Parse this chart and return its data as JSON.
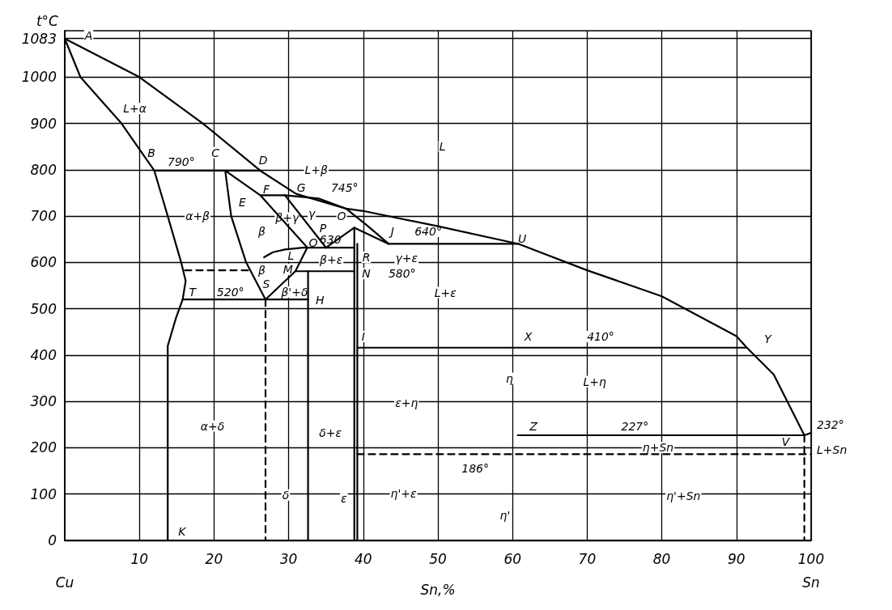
{
  "chart_data": {
    "type": "line",
    "ylabel": "t°C",
    "xlabel": "Sn,%",
    "xlim": [
      0,
      100
    ],
    "ylim": [
      0,
      1100
    ],
    "xticks": [
      10,
      20,
      30,
      40,
      50,
      60,
      70,
      80,
      90,
      100
    ],
    "yticks": [
      0,
      100,
      200,
      300,
      400,
      500,
      600,
      700,
      800,
      900,
      1000,
      1083
    ],
    "grid": true,
    "marker": "none",
    "line_style": "solid",
    "series": [
      {
        "color": "#000000",
        "x": [
          0,
          10,
          18.5,
          26.2,
          31,
          37.7,
          40,
          50,
          60.8,
          70,
          80,
          90,
          91.4,
          95,
          99.1,
          100
        ],
        "values": [
          1083,
          1000,
          900,
          798,
          748,
          716,
          711,
          678,
          640,
          583,
          527,
          441,
          416,
          358,
          227,
          232
        ]
      },
      {
        "color": "#000000",
        "x": [
          0,
          2.1,
          7.6,
          12,
          13.8,
          15.6,
          16.2,
          15.8,
          14.9,
          13.8,
          13.8
        ],
        "values": [
          1083,
          1000,
          900,
          798,
          700,
          600,
          560,
          520,
          480,
          420,
          0
        ]
      },
      {
        "color": "#000000",
        "x": [
          12,
          26.2
        ],
        "values": [
          798,
          798
        ]
      },
      {
        "color": "#000000",
        "x": [
          21.5,
          22.3,
          24.3,
          26.9
        ],
        "values": [
          798,
          700,
          600,
          520
        ]
      },
      {
        "color": "#000000",
        "x": [
          21.5,
          26.2,
          32.5
        ],
        "values": [
          798,
          745,
          632
        ]
      },
      {
        "color": "#000000",
        "x": [
          26.2,
          29.5,
          34,
          37.7,
          40.5,
          43.4
        ],
        "values": [
          745,
          745,
          738,
          716,
          680,
          640
        ]
      },
      {
        "color": "#000000",
        "x": [
          29.5,
          35,
          38.8,
          43.4,
          60.8
        ],
        "values": [
          745,
          632,
          675,
          640,
          640
        ]
      },
      {
        "color": "#000000",
        "x": [
          26.7,
          27.9,
          29.5,
          31.9,
          38.8
        ],
        "values": [
          611,
          622,
          628,
          632,
          632
        ]
      },
      {
        "color": "#000000",
        "x": [
          38.8,
          38.8
        ],
        "values": [
          675,
          0
        ]
      },
      {
        "color": "#000000",
        "x": [
          30.9,
          38.8
        ],
        "values": [
          581,
          581
        ]
      },
      {
        "color": "#000000",
        "x": [
          32.6,
          32.6
        ],
        "values": [
          581,
          0
        ]
      },
      {
        "color": "#000000",
        "x": [
          26.9,
          30.9,
          32.5
        ],
        "values": [
          520,
          581,
          632
        ]
      },
      {
        "color": "#000000",
        "x": [
          15.8,
          32.6
        ],
        "values": [
          520,
          520
        ]
      },
      {
        "color": "#000000",
        "x": [
          16.1,
          24.8
        ],
        "values": [
          583,
          583
        ],
        "line_style": "dashed"
      },
      {
        "color": "#000000",
        "x": [
          26.9,
          26.9
        ],
        "values": [
          520,
          0
        ],
        "line_style": "dashed"
      },
      {
        "color": "#000000",
        "x": [
          39.2,
          39.2
        ],
        "values": [
          640,
          0
        ]
      },
      {
        "color": "#000000",
        "x": [
          39.2,
          91.4
        ],
        "values": [
          416,
          416
        ]
      },
      {
        "color": "#000000",
        "x": [
          60.7,
          99.1
        ],
        "values": [
          227,
          227
        ]
      },
      {
        "color": "#000000",
        "x": [
          39.2,
          100
        ],
        "values": [
          186,
          186
        ],
        "line_style": "dashed"
      },
      {
        "color": "#000000",
        "x": [
          99.1,
          99.1
        ],
        "values": [
          227,
          0
        ],
        "line_style": "dashed"
      }
    ],
    "annotations": [
      {
        "text": "A",
        "x": 3.2,
        "y": 1090
      },
      {
        "text": "L+α",
        "x": 9.4,
        "y": 932
      },
      {
        "text": "B",
        "x": 11.6,
        "y": 837
      },
      {
        "text": "790°",
        "x": 15.6,
        "y": 817
      },
      {
        "text": "C",
        "x": 20.2,
        "y": 837
      },
      {
        "text": "D",
        "x": 26.6,
        "y": 820
      },
      {
        "text": "L+β",
        "x": 33.7,
        "y": 800
      },
      {
        "text": "L",
        "x": 50.6,
        "y": 850
      },
      {
        "text": "F",
        "x": 27,
        "y": 757
      },
      {
        "text": "G",
        "x": 31.7,
        "y": 762
      },
      {
        "text": "745°",
        "x": 37.5,
        "y": 762
      },
      {
        "text": "E",
        "x": 23.8,
        "y": 729
      },
      {
        "text": "α+β",
        "x": 17.8,
        "y": 700
      },
      {
        "text": "β+γ",
        "x": 29.8,
        "y": 696
      },
      {
        "text": "γ",
        "x": 33.1,
        "y": 705
      },
      {
        "text": "O",
        "x": 37.1,
        "y": 701
      },
      {
        "text": "β",
        "x": 26.4,
        "y": 667
      },
      {
        "text": "P",
        "x": 34.6,
        "y": 674
      },
      {
        "text": "J",
        "x": 43.9,
        "y": 667
      },
      {
        "text": "640°",
        "x": 48.7,
        "y": 667
      },
      {
        "text": "U",
        "x": 61.3,
        "y": 652
      },
      {
        "text": "O",
        "x": 33.3,
        "y": 642
      },
      {
        "text": "L",
        "x": 30.3,
        "y": 614
      },
      {
        "text": "630",
        "x": 35.6,
        "y": 650
      },
      {
        "text": "R",
        "x": 40.4,
        "y": 611
      },
      {
        "text": "γ+ε",
        "x": 45.8,
        "y": 609
      },
      {
        "text": "β",
        "x": 26.4,
        "y": 584
      },
      {
        "text": "M",
        "x": 29.9,
        "y": 585
      },
      {
        "text": "β+ε",
        "x": 35.7,
        "y": 606
      },
      {
        "text": "N",
        "x": 40.4,
        "y": 576
      },
      {
        "text": "580°",
        "x": 45.2,
        "y": 576
      },
      {
        "text": "S",
        "x": 27,
        "y": 553
      },
      {
        "text": "T",
        "x": 17.1,
        "y": 536
      },
      {
        "text": "520°",
        "x": 22.2,
        "y": 536
      },
      {
        "text": "β'+δ",
        "x": 30.8,
        "y": 536
      },
      {
        "text": "H",
        "x": 34.2,
        "y": 518
      },
      {
        "text": "L+ε",
        "x": 51,
        "y": 535
      },
      {
        "text": "I",
        "x": 40,
        "y": 440
      },
      {
        "text": "X",
        "x": 62.1,
        "y": 440
      },
      {
        "text": "410°",
        "x": 71.8,
        "y": 440
      },
      {
        "text": "Y",
        "x": 94.2,
        "y": 435
      },
      {
        "text": "L+η",
        "x": 71,
        "y": 343
      },
      {
        "text": "η",
        "x": 59.6,
        "y": 350
      },
      {
        "text": "ε+η",
        "x": 45.8,
        "y": 297
      },
      {
        "text": "α+δ",
        "x": 19.8,
        "y": 247
      },
      {
        "text": "δ+ε",
        "x": 35.6,
        "y": 233
      },
      {
        "text": "Z",
        "x": 62.8,
        "y": 246
      },
      {
        "text": "227°",
        "x": 76.4,
        "y": 246
      },
      {
        "text": "V",
        "x": 96.6,
        "y": 213
      },
      {
        "text": "186°",
        "x": 55,
        "y": 155
      },
      {
        "text": "δ",
        "x": 29.6,
        "y": 98
      },
      {
        "text": "ε",
        "x": 37.4,
        "y": 91
      },
      {
        "text": "η'+ε",
        "x": 45.4,
        "y": 101
      },
      {
        "text": "η'",
        "x": 59,
        "y": 54
      },
      {
        "text": "K",
        "x": 15.7,
        "y": 20
      },
      "232°",
      "η+Sn",
      "L+Sn",
      "η'+Sn",
      "Cu",
      "Sn"
    ]
  }
}
